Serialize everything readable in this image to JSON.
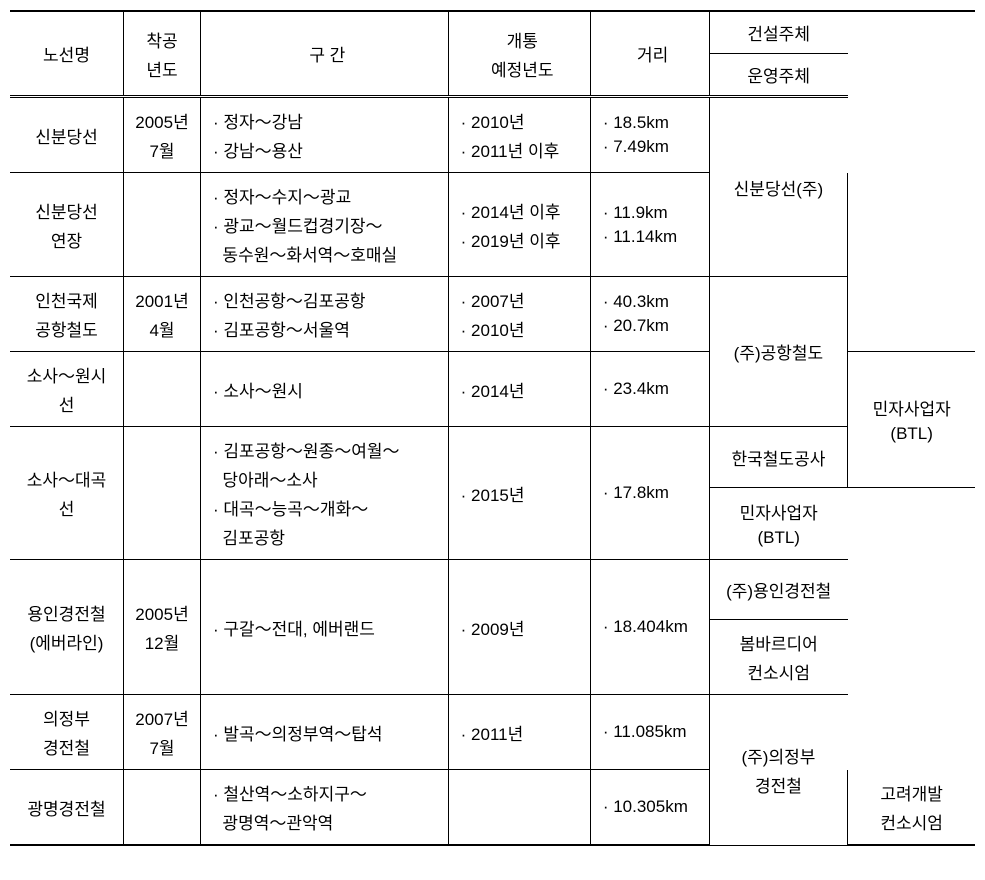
{
  "headers": {
    "route": "노선명",
    "start_year": "착공\n년도",
    "section": "구     간",
    "open_year": "개통\n예정년도",
    "distance": "거리",
    "builder": "건설주체",
    "operator": "운영주체"
  },
  "rows": [
    {
      "route": "신분당선",
      "start_year": "2005년\n7월",
      "sections": [
        "· 정자～강남",
        "· 강남～용산"
      ],
      "open_years": [
        "· 2010년",
        "· 2011년 이후"
      ],
      "distances": [
        "· 18.5km",
        "· 7.49km"
      ],
      "entities": [
        {
          "text": "신분당선(주)",
          "span": 2
        }
      ]
    },
    {
      "route": "신분당선\n연장",
      "start_year": "",
      "sections": [
        "· 정자～수지～광교",
        "· 광교～월드컵경기장～",
        "  동수원～화서역～호매실"
      ],
      "open_years": [
        "· 2014년 이후",
        "· 2019년 이후"
      ],
      "distances": [
        "· 11.9km",
        "· 11.14km"
      ],
      "entities": [
        {
          "text": "",
          "span": 2
        }
      ]
    },
    {
      "route": "인천국제\n공항철도",
      "start_year": "2001년\n4월",
      "sections": [
        "· 인천공항～김포공항",
        "· 김포공항～서울역"
      ],
      "open_years": [
        "· 2007년",
        "· 2010년"
      ],
      "distances": [
        "· 40.3km",
        "· 20.7km"
      ],
      "entities": [
        {
          "text": "(주)공항철도",
          "span": 2
        }
      ]
    },
    {
      "route": "소사～원시\n선",
      "start_year": "",
      "sections": [
        "· 소사～원시"
      ],
      "open_years": [
        "· 2014년"
      ],
      "distances": [
        "· 23.4km"
      ],
      "entities": [
        {
          "text": "민자사업자\n(BTL)",
          "span": 2
        }
      ]
    },
    {
      "route": "소사～대곡\n선",
      "start_year": "",
      "sections": [
        "· 김포공항～원종～여월～",
        "  당아래～소사",
        "· 대곡～능곡～개화～",
        "  김포공항"
      ],
      "open_years": [
        "· 2015년"
      ],
      "distances": [
        "· 17.8km"
      ],
      "entities": [
        {
          "text": "한국철도공사",
          "span": 1
        },
        {
          "text": "민자사업자\n(BTL)",
          "span": 1
        }
      ]
    },
    {
      "route": "용인경전철\n(에버라인)",
      "start_year": "2005년\n12월",
      "sections": [
        "· 구갈～전대, 에버랜드"
      ],
      "open_years": [
        "· 2009년"
      ],
      "distances": [
        "· 18.404km"
      ],
      "entities": [
        {
          "text": "(주)용인경전철",
          "span": 1
        },
        {
          "text": "봄바르디어\n컨소시엄",
          "span": 1
        }
      ]
    },
    {
      "route": "의정부\n경전철",
      "start_year": "2007년\n7월",
      "sections": [
        "· 발곡～의정부역～탑석"
      ],
      "open_years": [
        "· 2011년"
      ],
      "distances": [
        "· 11.085km"
      ],
      "entities": [
        {
          "text": "(주)의정부\n경전철",
          "span": 2
        }
      ]
    },
    {
      "route": "광명경전철",
      "start_year": "",
      "sections": [
        "· 철산역～소하지구～",
        "  광명역～관악역"
      ],
      "open_years": [
        ""
      ],
      "distances": [
        "· 10.305km"
      ],
      "entities": [
        {
          "text": "고려개발\n컨소시엄",
          "span": 2
        }
      ]
    }
  ]
}
